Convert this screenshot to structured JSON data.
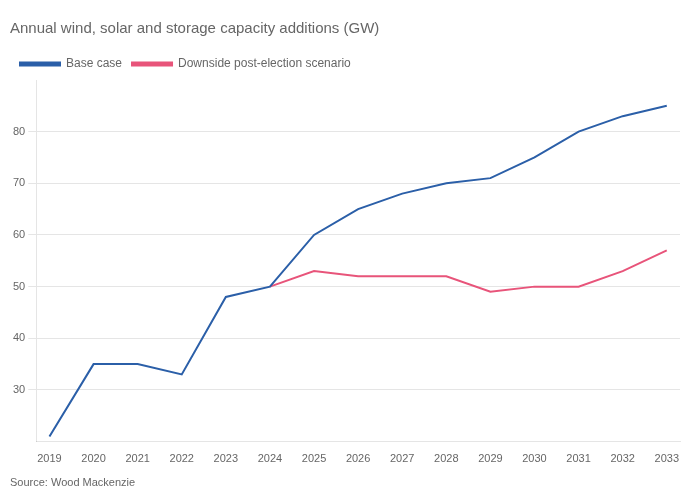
{
  "chart_data": {
    "type": "line",
    "title": "Annual wind, solar and storage capacity additions (GW)",
    "annotation": "Source: Wood Mackenzie",
    "series": [
      {
        "name": "Base case",
        "color": "#2b5fa8",
        "x": [
          2019,
          2020,
          2021,
          2022,
          2023,
          2024,
          2025,
          2026,
          2027,
          2028,
          2029,
          2030,
          2031,
          2032,
          2033
        ],
        "values": [
          21,
          35,
          35,
          33,
          48,
          50,
          60,
          65,
          68,
          70,
          71,
          75,
          80,
          83,
          85
        ]
      },
      {
        "name": "Downside post-election scenario",
        "color": "#e8547a",
        "x": [
          2024,
          2025,
          2026,
          2027,
          2028,
          2029,
          2030,
          2031,
          2032,
          2033
        ],
        "values": [
          50,
          53,
          52,
          52,
          52,
          49,
          50,
          50,
          53,
          57
        ]
      }
    ],
    "xlim": [
      2018.7,
      2033.3
    ],
    "xticks": [
      2019,
      2020,
      2021,
      2022,
      2023,
      2024,
      2025,
      2026,
      2027,
      2028,
      2029,
      2030,
      2031,
      2032,
      2033
    ],
    "ylim": [
      20,
      90
    ],
    "yticks": [
      30,
      40,
      50,
      60,
      70,
      80
    ],
    "grid": "y",
    "legend": "top"
  }
}
